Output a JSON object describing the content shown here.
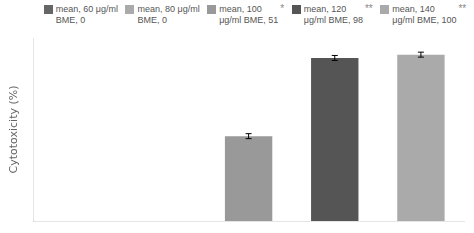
{
  "chart_data": {
    "type": "bar",
    "ylabel": "Cytotoxicity (%)",
    "categories": [
      null,
      null,
      null,
      null,
      null
    ],
    "values": [
      0,
      0,
      51,
      98,
      100
    ],
    "colors": [
      "#666666",
      "#aaaaaa",
      "#999999",
      "#555555",
      "#aaaaaa"
    ],
    "error_bars": [
      null,
      null,
      1.5,
      1.5,
      1.5
    ],
    "ylim": [
      0,
      110
    ],
    "grid": false,
    "tick_labels": false,
    "annotations": [
      {
        "text": "mean, 60 μg/ml\nBME, 0",
        "color": "#666666"
      },
      {
        "text": "mean, 80 μg/ml\nBME, 0",
        "color": "#aaaaaa"
      },
      {
        "text": "mean, 100\nμg/ml BME, 51",
        "color": "#999999",
        "sig": "*"
      },
      {
        "text": "mean, 120\nμg/ml BME, 98",
        "color": "#555555",
        "sig": "**"
      },
      {
        "text": "mean, 140\nμg/ml BME, 100",
        "color": "#aaaaaa",
        "sig": "**"
      }
    ]
  }
}
